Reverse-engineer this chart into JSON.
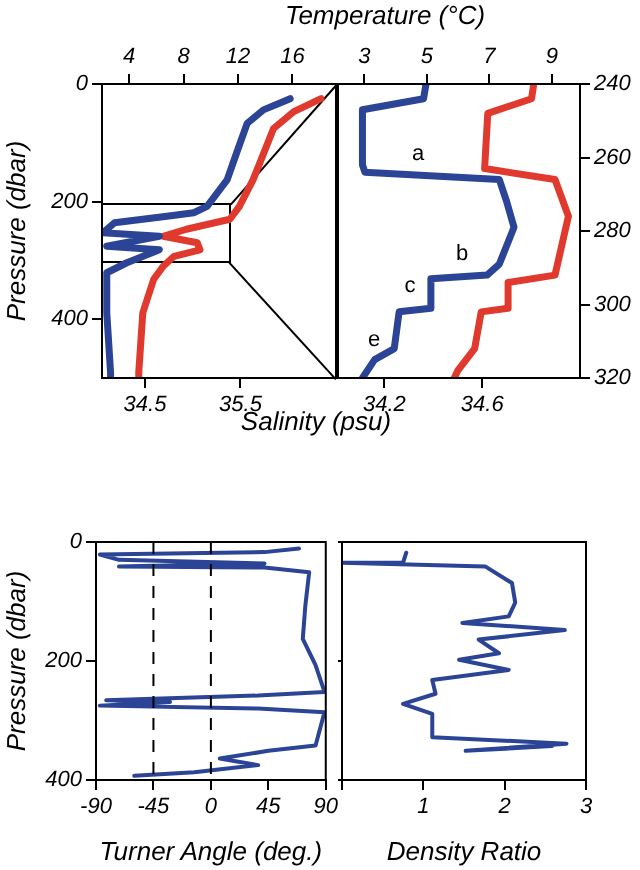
{
  "chart_data": [
    {
      "type": "line",
      "x2label": "Temperature (°C)",
      "xlabel": "Salinity (psu)",
      "ylabel": "Pressure (dbar)",
      "xlim": [
        34.05,
        36.5
      ],
      "xticks": [
        34.5,
        35.5
      ],
      "x2lim": [
        2,
        19.2
      ],
      "x2ticks": [
        4,
        8,
        12,
        16
      ],
      "ylim": [
        500,
        0
      ],
      "yticks": [
        0,
        200,
        400
      ],
      "grid": false,
      "legend": false,
      "marker": "none",
      "series": [
        {
          "color": "#2b4495",
          "x": [
            36.02,
            35.74,
            35.57,
            35.46,
            35.36,
            35.15,
            35.01,
            34.73,
            34.18,
            34.06,
            34.65,
            34.1,
            34.65,
            34.31,
            34.1,
            34.1,
            34.14,
            34.14
          ],
          "values": [
            25,
            44,
            67,
            117,
            163,
            208,
            219,
            225,
            236,
            253,
            259,
            276,
            282,
            304,
            321,
            389,
            491,
            500
          ]
        },
        {
          "color": "#e03a2e",
          "axis": "x2",
          "x": [
            18.1,
            16.1,
            14.6,
            13.9,
            13.1,
            12.1,
            11.4,
            8.2,
            6.5,
            9.0,
            9.2,
            7.3,
            6.5,
            5.8,
            5.0,
            4.7,
            4.7
          ],
          "values": [
            25,
            47,
            76,
            117,
            163,
            208,
            230,
            247,
            259,
            270,
            282,
            293,
            310,
            332,
            389,
            491,
            500
          ]
        }
      ]
    },
    {
      "type": "line",
      "xlim": [
        34.01,
        35.0
      ],
      "xticks": [
        34.2,
        34.6
      ],
      "x2lim": [
        2.16,
        9.9
      ],
      "x2ticks": [
        3,
        5,
        7,
        9
      ],
      "ylim": [
        320,
        240
      ],
      "yticks": [
        240,
        260,
        280,
        300,
        320
      ],
      "grid": false,
      "legend": false,
      "marker": "none",
      "annotations": [
        "a",
        "b",
        "c",
        "e"
      ],
      "series": [
        {
          "color": "#2b4495",
          "x": [
            34.37,
            34.36,
            34.11,
            34.11,
            34.12,
            34.67,
            34.7,
            34.73,
            34.67,
            34.62,
            34.39,
            34.39,
            34.26,
            34.24,
            34.16,
            34.11
          ],
          "values": [
            240,
            244,
            247,
            262,
            264,
            266,
            272,
            279,
            289,
            292,
            293,
            301,
            302,
            312,
            315,
            320
          ]
        },
        {
          "color": "#e03a2e",
          "axis": "x2",
          "x": [
            8.42,
            8.35,
            6.95,
            6.85,
            9.1,
            9.53,
            9.1,
            7.6,
            7.6,
            6.74,
            6.53,
            5.99,
            5.88
          ],
          "values": [
            240,
            244,
            248,
            263,
            266,
            276,
            292,
            294,
            301,
            302,
            312,
            318,
            320
          ]
        }
      ]
    },
    {
      "type": "line",
      "xlabel": "Turner Angle (deg.)",
      "ylabel": "Pressure (dbar)",
      "xlim": [
        -90,
        90
      ],
      "xticks": [
        -90,
        -45,
        0,
        45,
        90
      ],
      "ylim": [
        400,
        0
      ],
      "yticks": [
        0,
        200,
        400
      ],
      "grid": false,
      "legend": false,
      "marker": "none",
      "ref_lines": [
        {
          "axis": "x",
          "value": -45,
          "line_style": "dashed"
        },
        {
          "axis": "x",
          "value": 0,
          "line_style": "dashed"
        }
      ],
      "series": [
        {
          "color": "#2b4495",
          "x": [
            69,
            42,
            -87,
            -72,
            42,
            -72,
            42,
            77,
            74,
            72,
            82,
            89,
            37,
            -82,
            -32,
            -87,
            37,
            89,
            82,
            45,
            7,
            37,
            -13,
            -60
          ],
          "values": [
            11,
            17,
            21,
            30,
            36,
            41,
            43,
            51,
            107,
            163,
            207,
            252,
            258,
            266,
            269,
            275,
            280,
            286,
            342,
            351,
            364,
            375,
            387,
            393
          ]
        }
      ]
    },
    {
      "type": "line",
      "xlabel": "Density Ratio",
      "xlim": [
        0,
        3
      ],
      "xticks": [
        {
          "value": 0,
          "label": null
        },
        1,
        2,
        3
      ],
      "ylim": [
        400,
        0
      ],
      "yticks": [
        0,
        200,
        400
      ],
      "tick_labels": "x",
      "grid": false,
      "legend": false,
      "marker": "none",
      "series": [
        {
          "color": "#2b4495",
          "x": [
            0.79,
            0.75,
            0.0,
            1.76,
            2.09,
            2.13,
            2.05,
            1.48,
            2.74,
            1.68,
            1.93,
            1.44,
            2.05,
            1.11,
            1.15,
            0.75,
            1.11,
            1.11,
            2.76,
            1.52,
            2.58
          ],
          "values": [
            18,
            35,
            35,
            41,
            69,
            102,
            125,
            136,
            148,
            164,
            187,
            198,
            215,
            232,
            255,
            272,
            289,
            328,
            339,
            351,
            343
          ]
        }
      ]
    }
  ]
}
